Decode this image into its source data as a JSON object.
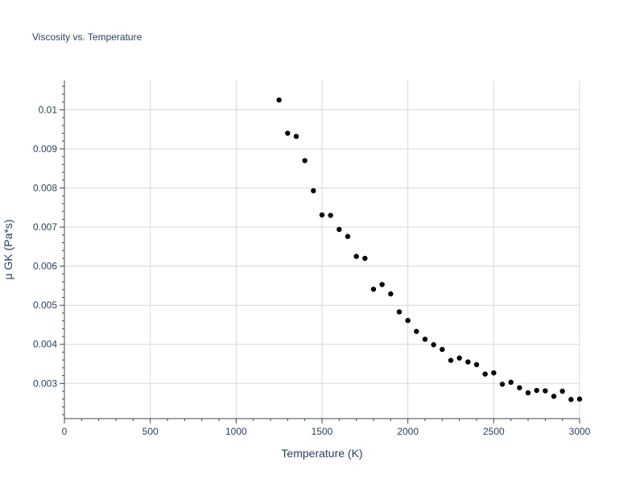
{
  "chart_data": {
    "type": "scatter",
    "title": "Viscosity vs. Temperature",
    "xlabel": "Temperature (K)",
    "ylabel": "μ GK (Pa*s)",
    "xlim": [
      0,
      3000
    ],
    "ylim": [
      0.0021,
      0.01075
    ],
    "x_ticks": [
      0,
      500,
      1000,
      1500,
      2000,
      2500,
      3000
    ],
    "x_tick_labels": [
      "0",
      "500",
      "1000",
      "1500",
      "2000",
      "2500",
      "3000"
    ],
    "y_ticks": [
      0.003,
      0.004,
      0.005,
      0.006,
      0.007,
      0.008,
      0.009,
      0.01
    ],
    "y_tick_labels": [
      "0.003",
      "0.004",
      "0.005",
      "0.006",
      "0.007",
      "0.008",
      "0.009",
      "0.01"
    ],
    "grid": true,
    "marker_color": "#000000",
    "series": [
      {
        "name": "μ GK",
        "x": [
          1250,
          1300,
          1350,
          1400,
          1450,
          1500,
          1550,
          1600,
          1650,
          1700,
          1750,
          1800,
          1850,
          1900,
          1950,
          2000,
          2050,
          2100,
          2150,
          2200,
          2250,
          2300,
          2350,
          2400,
          2450,
          2500,
          2550,
          2600,
          2650,
          2700,
          2750,
          2800,
          2850,
          2900,
          2950,
          3000
        ],
        "y": [
          0.01025,
          0.0094,
          0.00932,
          0.0087,
          0.00793,
          0.00731,
          0.0073,
          0.00694,
          0.00676,
          0.00625,
          0.0062,
          0.00541,
          0.00553,
          0.00529,
          0.00483,
          0.00461,
          0.00433,
          0.00413,
          0.00399,
          0.00387,
          0.00359,
          0.00365,
          0.00355,
          0.00348,
          0.00324,
          0.00327,
          0.00298,
          0.00303,
          0.00289,
          0.00276,
          0.00282,
          0.00281,
          0.00267,
          0.0028,
          0.00259,
          0.0026
        ]
      }
    ]
  }
}
